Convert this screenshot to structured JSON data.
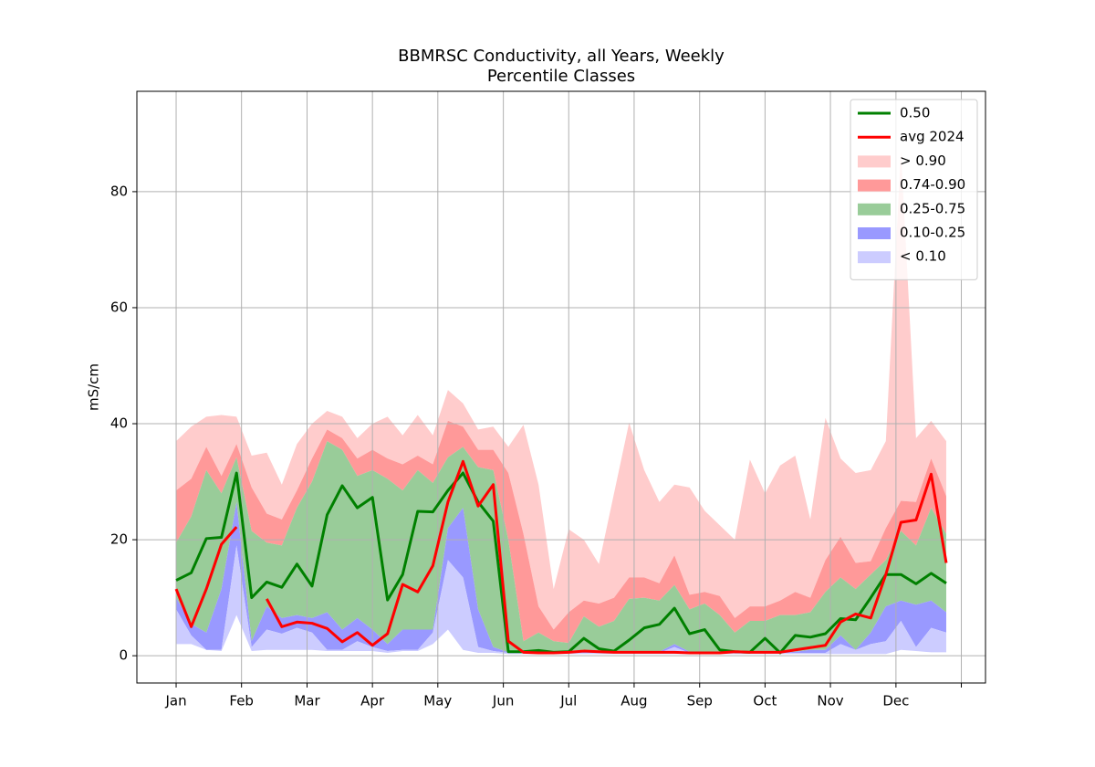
{
  "chart_data": {
    "type": "percentile-bands",
    "title": "BBMRSC Conductivity, all Years, Weekly",
    "subtitle": "Percentile Classes",
    "y_label": "mS/cm",
    "x": [
      0,
      1,
      2,
      3,
      4,
      5,
      6,
      7,
      8,
      9,
      10,
      11,
      12,
      13,
      14,
      15,
      16,
      17,
      18,
      19,
      20,
      21,
      22,
      23,
      24,
      25,
      26,
      27,
      28,
      29,
      30,
      31,
      32,
      33,
      34,
      35,
      36,
      37,
      38,
      39,
      40,
      41,
      42,
      43,
      44,
      45,
      46,
      47,
      48,
      49,
      50,
      51
    ],
    "xlim": [
      -2.6,
      53.6
    ],
    "xticks": [
      {
        "value": 0,
        "label": "Jan"
      },
      {
        "value": 4.33,
        "label": "Feb"
      },
      {
        "value": 8.67,
        "label": "Mar"
      },
      {
        "value": 13,
        "label": "Apr"
      },
      {
        "value": 17.33,
        "label": "May"
      },
      {
        "value": 21.67,
        "label": "Jun"
      },
      {
        "value": 26,
        "label": "Jul"
      },
      {
        "value": 30.33,
        "label": "Aug"
      },
      {
        "value": 34.67,
        "label": "Sep"
      },
      {
        "value": 39,
        "label": "Oct"
      },
      {
        "value": 43.33,
        "label": "Nov"
      },
      {
        "value": 47.67,
        "label": "Dec"
      },
      {
        "value": 52,
        "label": null
      }
    ],
    "ylim": [
      -4.7,
      97.3
    ],
    "yticks": [
      0,
      20,
      40,
      60,
      80
    ],
    "grid": true,
    "legend": "upper right",
    "band_floor": [
      2,
      2,
      1,
      0.8,
      7,
      0.8,
      1,
      1,
      1,
      1,
      0.8,
      0.8,
      0.8,
      0.8,
      0.5,
      0.8,
      0.8,
      2,
      4.5,
      1,
      0.5,
      0.5,
      0.3,
      0.3,
      0.3,
      0.3,
      0.3,
      0.3,
      0.3,
      0.3,
      0.3,
      0.3,
      0.3,
      0.3,
      0.3,
      0.3,
      0.3,
      0.3,
      0.3,
      0.3,
      0.3,
      0.3,
      0.3,
      0.3,
      0.3,
      0.3,
      0.3,
      0.3,
      1,
      0.8,
      0.6,
      0.6
    ],
    "series": [
      {
        "name": "0.50",
        "style": "line",
        "color": "#008000",
        "values": [
          13,
          14.3,
          20.2,
          20.4,
          31.5,
          10,
          12.7,
          11.8,
          15.8,
          12,
          24.3,
          29.3,
          25.5,
          27.3,
          9.6,
          14,
          24.9,
          24.8,
          28.5,
          31.5,
          26.5,
          23.2,
          0.7,
          0.7,
          0.9,
          0.6,
          0.7,
          3,
          1.2,
          0.8,
          2.7,
          4.8,
          5.4,
          8.2,
          3.8,
          4.5,
          1,
          0.7,
          0.6,
          3,
          0.5,
          3.5,
          3.2,
          3.8,
          6.4,
          6.2,
          10,
          14,
          14,
          12.4,
          14.2,
          12.5
        ]
      },
      {
        "name": "avg 2024",
        "style": "line",
        "color": "#ff0000",
        "values": [
          11.5,
          5,
          11.5,
          19.2,
          22.2,
          null,
          9.8,
          5,
          5.8,
          5.6,
          4.7,
          2.4,
          4,
          1.8,
          3.8,
          12.3,
          11,
          15.5,
          26.5,
          33.5,
          25.8,
          29.5,
          2.5,
          0.6,
          0.5,
          0.5,
          0.6,
          0.8,
          0.7,
          0.6,
          0.6,
          0.6,
          0.6,
          0.6,
          0.5,
          0.5,
          0.5,
          0.7,
          0.6,
          0.6,
          0.6,
          1,
          1.4,
          1.8,
          5.8,
          7.2,
          6.5,
          14,
          23,
          23.4,
          31.3,
          16
        ]
      },
      {
        "name": "> 0.90",
        "style": "band",
        "color": "#ffcccc",
        "values": [
          37,
          39.5,
          41.2,
          41.5,
          41.2,
          34.5,
          35,
          29.5,
          36.5,
          40,
          42.2,
          41.2,
          37.5,
          40,
          41.2,
          38,
          41.5,
          38,
          45.8,
          43.5,
          39,
          39.5,
          36,
          39.8,
          29.5,
          11.5,
          21.8,
          20,
          15.8,
          28,
          40.2,
          32,
          26.5,
          29.5,
          29,
          25,
          22.5,
          20,
          33.8,
          28,
          32.8,
          34.5,
          23.5,
          41,
          34,
          31.5,
          32,
          37,
          87,
          37.5,
          40.5,
          37
        ]
      },
      {
        "name": "0.74-0.90",
        "style": "band",
        "color": "#ff9999",
        "values": [
          28.5,
          30.5,
          36,
          31,
          36.5,
          29,
          24.5,
          23.5,
          28.5,
          34,
          39,
          37.5,
          34,
          35.5,
          34,
          33,
          34.5,
          33,
          40.5,
          39.5,
          35.5,
          35.5,
          31.5,
          21,
          8.5,
          4.5,
          7.5,
          9.5,
          9,
          10,
          13.5,
          13.5,
          12.5,
          17.3,
          10.5,
          11,
          10.3,
          6.5,
          8.5,
          8.5,
          9.5,
          11,
          10,
          16.5,
          20.5,
          16,
          16.3,
          22,
          26.7,
          26.5,
          34,
          27.5
        ]
      },
      {
        "name": "0.25-0.75",
        "style": "band",
        "color": "#99cc99",
        "values": [
          19.5,
          24,
          32,
          28,
          34.2,
          21.5,
          19.5,
          19,
          25.5,
          30,
          37,
          35.5,
          31,
          32,
          30.5,
          28.5,
          32,
          29.8,
          34.2,
          36,
          32.5,
          32,
          20,
          2.5,
          4,
          2.5,
          2.2,
          6.8,
          5,
          6,
          9.8,
          10,
          9.5,
          12.2,
          8,
          9,
          7,
          4,
          6,
          6,
          7,
          7,
          7.5,
          11,
          13.5,
          11.5,
          14,
          16.5,
          21.5,
          19,
          25.5,
          21
        ]
      },
      {
        "name": "0.10-0.25",
        "style": "band",
        "color": "#9999ff",
        "values": [
          10,
          5.5,
          4,
          11.5,
          26.5,
          2.5,
          8.5,
          6.5,
          7,
          6.5,
          7.5,
          4.5,
          6.5,
          4.5,
          2,
          4.5,
          4.5,
          4.5,
          22,
          25.5,
          8,
          1.5,
          0.6,
          0.6,
          0.6,
          0.5,
          0.5,
          0.6,
          0.6,
          0.5,
          0.6,
          0.7,
          0.7,
          2,
          0.7,
          0.7,
          0.7,
          0.6,
          0.5,
          0.6,
          0.5,
          0.7,
          1,
          1,
          3.5,
          1,
          4,
          8.5,
          9.5,
          8.8,
          9.5,
          7.5
        ]
      },
      {
        "name": "< 0.10",
        "style": "band",
        "color": "#ccccff",
        "values": [
          8,
          3.5,
          1,
          1,
          19,
          1.5,
          4.5,
          3.8,
          4.8,
          4,
          1,
          1,
          2.5,
          1.5,
          0.8,
          1,
          1,
          4,
          16.5,
          13.5,
          1.5,
          0.8,
          0.5,
          0.5,
          0.5,
          0.5,
          0.5,
          0.5,
          0.5,
          0.5,
          0.5,
          0.5,
          0.5,
          1.5,
          0.5,
          0.5,
          0.5,
          0.5,
          0.5,
          0.5,
          0.5,
          0.5,
          0.5,
          0.5,
          2,
          1,
          2,
          2.5,
          6,
          1.5,
          4.8,
          4
        ]
      }
    ]
  }
}
